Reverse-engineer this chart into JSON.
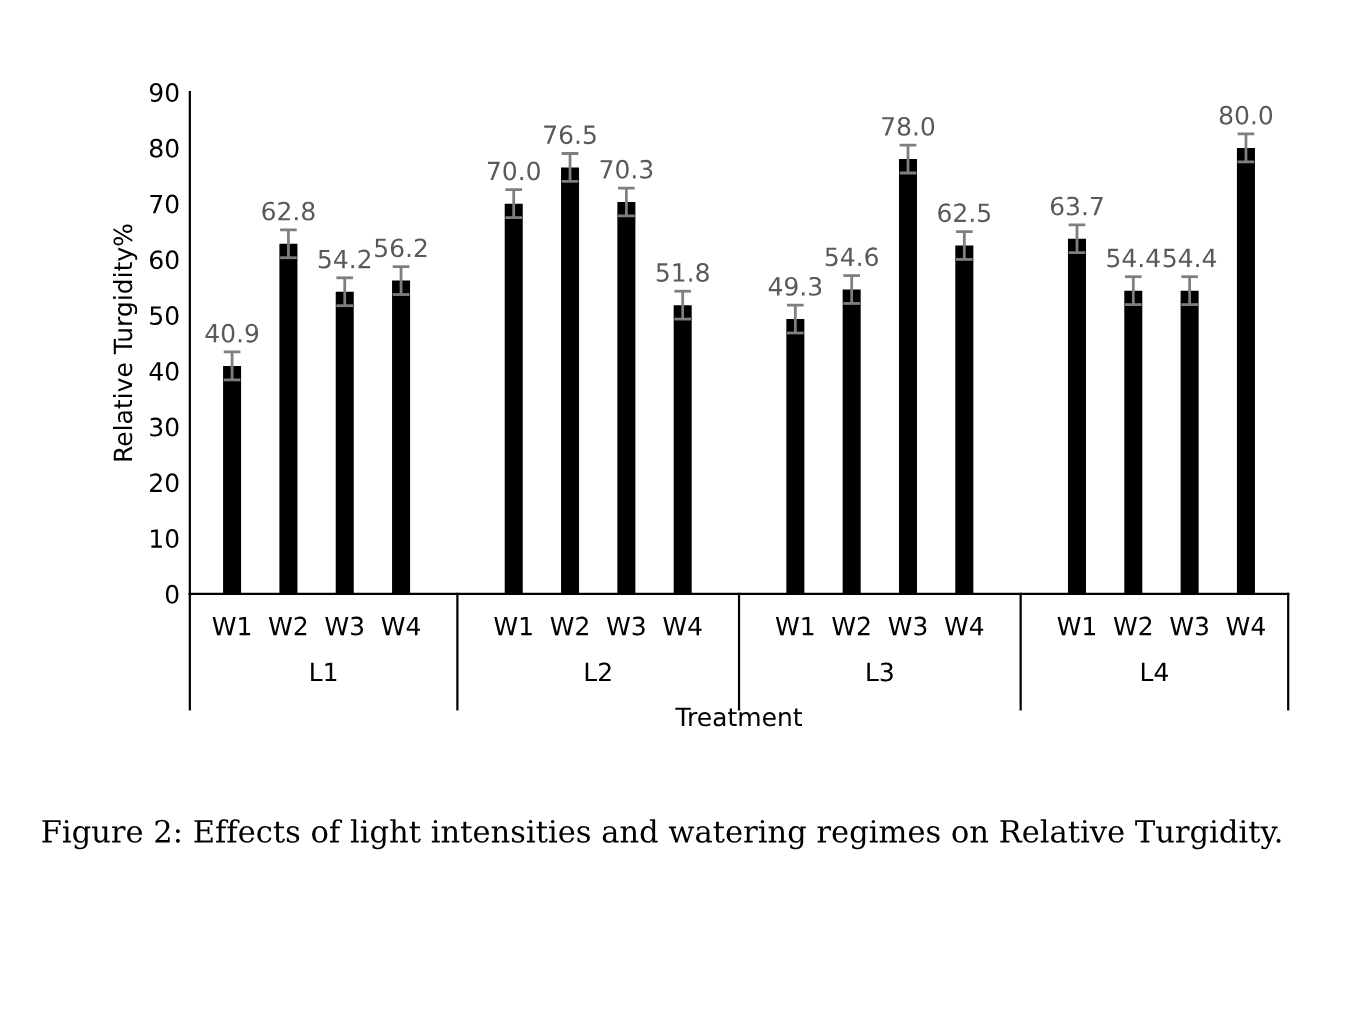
{
  "chart_data": {
    "type": "bar",
    "xlabel": "Treatment",
    "ylabel": "Relative Turgidity%",
    "categories": [
      "W1",
      "W2",
      "W3",
      "W4",
      "W1",
      "W2",
      "W3",
      "W4",
      "W1",
      "W2",
      "W3",
      "W4",
      "W1",
      "W2",
      "W3",
      "W4"
    ],
    "values": [
      40.9,
      62.8,
      54.2,
      56.2,
      70.0,
      76.5,
      70.3,
      51.8,
      49.3,
      54.6,
      78.0,
      62.5,
      63.7,
      54.4,
      54.4,
      80.0
    ],
    "errors": [
      2.5,
      2.5,
      2.5,
      2.5,
      2.5,
      2.5,
      2.5,
      2.5,
      2.5,
      2.5,
      2.5,
      2.5,
      2.5,
      2.5,
      2.5,
      2.5
    ],
    "color": "#000000",
    "value_labels": [
      "40.9",
      "62.8",
      "54.2",
      "56.2",
      "70.0",
      "76.5",
      "70.3",
      "51.8",
      "49.3",
      "54.6",
      "78.0",
      "62.5",
      "63.7",
      "54.4",
      "54.4",
      "80.0"
    ],
    "ylim": [
      0,
      90
    ],
    "yticks": [
      0,
      10,
      20,
      30,
      40,
      50,
      60,
      70,
      80,
      90
    ],
    "grid": false,
    "legend": false,
    "annotations": [
      "L1",
      "L2",
      "L3",
      "L4",
      "Figure 2: Effects of light intensities and watering regimes on Relative Turgidity."
    ]
  }
}
